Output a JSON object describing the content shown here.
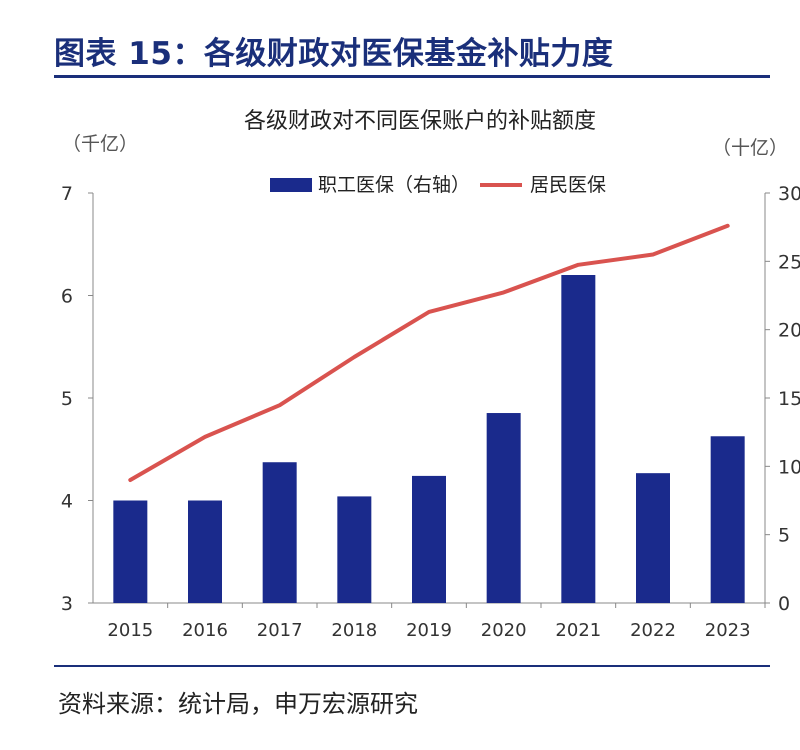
{
  "page": {
    "figure_title": "图表 15：各级财政对医保基金补贴力度",
    "source": "资料来源：统计局，申万宏源研究"
  },
  "chart_data": {
    "type": "bar",
    "title": "各级财政对不同医保账户的补贴额度",
    "categories": [
      "2015",
      "2016",
      "2017",
      "2018",
      "2019",
      "2020",
      "2021",
      "2022",
      "2023"
    ],
    "left_axis": {
      "unit_label": "（千亿）",
      "ylim": [
        3,
        7
      ],
      "ticks": [
        "3",
        "4",
        "5",
        "6",
        "7"
      ]
    },
    "right_axis": {
      "unit_label": "（十亿）",
      "ylim": [
        0,
        30
      ],
      "ticks": [
        "0",
        "5",
        "10",
        "15",
        "20",
        "25",
        "30"
      ]
    },
    "series": [
      {
        "name": "职工医保（右轴）",
        "type": "bar",
        "axis": "right",
        "color": "#1a2a8c",
        "values": [
          7.5,
          7.5,
          10.3,
          7.8,
          9.3,
          13.9,
          24.0,
          9.5,
          12.2
        ]
      },
      {
        "name": "居民医保",
        "type": "line",
        "axis": "left",
        "color": "#d9534f",
        "values": [
          4.2,
          4.62,
          4.93,
          5.4,
          5.84,
          6.03,
          6.3,
          6.4,
          6.68
        ]
      }
    ],
    "grid": false,
    "legend_position": "top-center"
  }
}
